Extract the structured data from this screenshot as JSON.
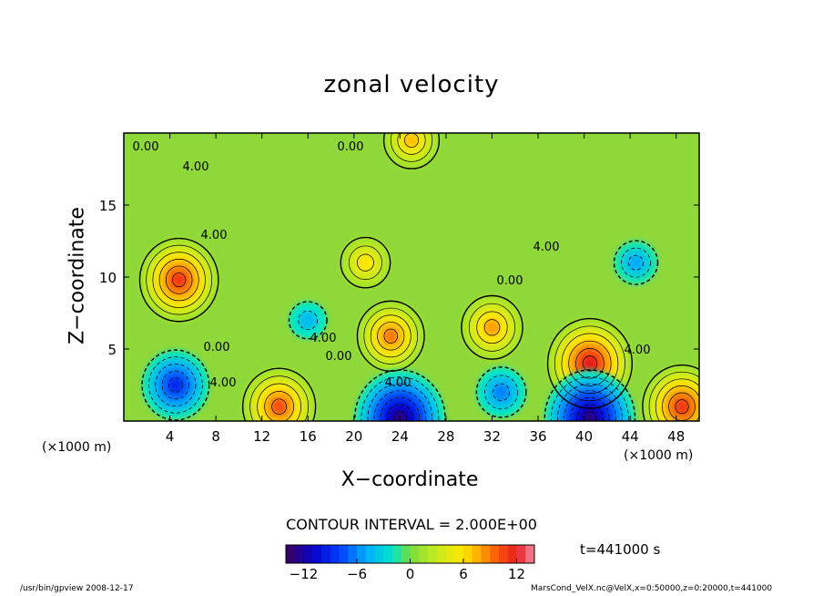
{
  "chart_data": {
    "type": "heatmap",
    "title": "zonal velocity",
    "xlabel": "X−coordinate",
    "ylabel": "Z−coordinate",
    "x_unit_left": "(×1000 m)",
    "x_unit_right": "(×1000 m)",
    "xlim": [
      0,
      50
    ],
    "ylim": [
      0,
      20
    ],
    "x_ticks": [
      4,
      8,
      12,
      16,
      20,
      24,
      28,
      32,
      36,
      40,
      44,
      48
    ],
    "y_ticks": [
      5,
      10,
      15
    ],
    "contour_interval_text": "CONTOUR INTERVAL = 2.000E+00",
    "time_text": "t=441000 s",
    "colorbar": {
      "range": [
        -14,
        14
      ],
      "ticks": [
        -12,
        -6,
        0,
        6,
        12
      ]
    },
    "contour_labels": [
      "0.00",
      "4.00",
      "0.00",
      "4.00",
      "4.00",
      "0.00",
      "4.00",
      "0.00",
      "4.00",
      "4.00",
      "0.00",
      "4.00"
    ],
    "features": [
      {
        "x": 4.8,
        "z": 9.8,
        "value": 11
      },
      {
        "x": 4.5,
        "z": 2.5,
        "value": -9
      },
      {
        "x": 13.5,
        "z": 1.0,
        "value": 10
      },
      {
        "x": 16.0,
        "z": 7.0,
        "value": -4
      },
      {
        "x": 23.2,
        "z": 5.9,
        "value": 9
      },
      {
        "x": 32.0,
        "z": 6.5,
        "value": 8
      },
      {
        "x": 32.8,
        "z": 2.0,
        "value": -6
      },
      {
        "x": 40.5,
        "z": 4.0,
        "value": 12
      },
      {
        "x": 44.5,
        "z": 11.0,
        "value": -5
      },
      {
        "x": 48.5,
        "z": 1.0,
        "value": 11
      },
      {
        "x": 24.0,
        "z": 0.2,
        "value": -13
      },
      {
        "x": 40.5,
        "z": 0.2,
        "value": -13
      },
      {
        "x": 21.0,
        "z": 11.0,
        "value": 6
      },
      {
        "x": 25.0,
        "z": 19.5,
        "value": 7
      }
    ]
  },
  "footer_left": "/usr/bin/gpview   2008-12-17",
  "footer_right": "MarsCond_VelX.nc@VelX,x=0:50000,z=0:20000,t=441000"
}
